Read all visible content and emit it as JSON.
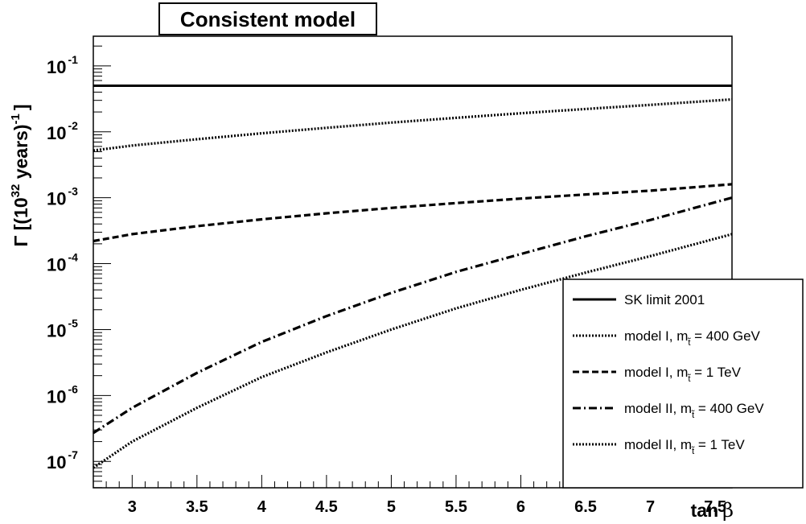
{
  "chart_data": {
    "type": "line",
    "title": "Consistent model",
    "xlabel": {
      "main": "tan",
      "symbol": "β"
    },
    "ylabel": {
      "pre": "Γ [(10",
      "sup1": "32",
      "mid": " years)",
      "sup2": "-1",
      "post": "]"
    },
    "xlim": [
      2.7,
      7.63
    ],
    "ylim_log10": [
      -7.4,
      -0.55
    ],
    "yscale": "log",
    "x_ticks": [
      "3",
      "3.5",
      "4",
      "4.5",
      "5",
      "5.5",
      "6",
      "6.5",
      "7",
      "7.5"
    ],
    "y_ticks": [
      {
        "base": "10",
        "exp": "-1"
      },
      {
        "base": "10",
        "exp": "-2"
      },
      {
        "base": "10",
        "exp": "-3"
      },
      {
        "base": "10",
        "exp": "-4"
      },
      {
        "base": "10",
        "exp": "-5"
      },
      {
        "base": "10",
        "exp": "-6"
      },
      {
        "base": "10",
        "exp": "-7"
      }
    ],
    "legend_position": "bottom-right",
    "series": [
      {
        "name": "SK limit 2001",
        "legend": {
          "pre": "SK limit 2001"
        },
        "style": "solid",
        "x": [
          2.7,
          7.63
        ],
        "y": [
          0.05,
          0.05
        ]
      },
      {
        "name": "model I, m = 400 GeV",
        "legend": {
          "pre": "model I, m",
          "sub": "t̃",
          "post": " = 400 GeV"
        },
        "style": "dotted",
        "x": [
          2.7,
          3.0,
          3.5,
          4.0,
          4.5,
          5.0,
          5.5,
          6.0,
          6.5,
          7.0,
          7.63
        ],
        "y": [
          0.0052,
          0.0062,
          0.0077,
          0.0095,
          0.0115,
          0.0138,
          0.0163,
          0.0191,
          0.0222,
          0.0256,
          0.031
        ]
      },
      {
        "name": "model I, m = 1 TeV",
        "legend": {
          "pre": "model I, m",
          "sub": "t̃",
          "post": " = 1 TeV"
        },
        "style": "dashed",
        "x": [
          2.7,
          3.0,
          3.5,
          4.0,
          4.5,
          5.0,
          5.5,
          6.0,
          6.5,
          7.0,
          7.63
        ],
        "y": [
          0.00022,
          0.00028,
          0.00037,
          0.00047,
          0.00058,
          0.0007,
          0.00083,
          0.00097,
          0.00112,
          0.00128,
          0.0016
        ]
      },
      {
        "name": "model II, m = 400 GeV",
        "legend": {
          "pre": "model II, m",
          "sub": "t̃",
          "post": " = 400 GeV"
        },
        "style": "dashdot",
        "x": [
          2.7,
          3.0,
          3.5,
          4.0,
          4.5,
          5.0,
          5.5,
          6.0,
          6.5,
          7.0,
          7.63
        ],
        "y": [
          2.7e-07,
          6.5e-07,
          2.2e-06,
          6.5e-06,
          1.6e-05,
          3.6e-05,
          7.5e-05,
          0.00014,
          0.00026,
          0.00046,
          0.001
        ]
      },
      {
        "name": "model II, m = 1 TeV",
        "legend": {
          "pre": "model II, m",
          "sub": "t̃",
          "post": " = 1 TeV"
        },
        "style": "dotted",
        "x": [
          2.7,
          3.0,
          3.5,
          4.0,
          4.5,
          5.0,
          5.5,
          6.0,
          6.5,
          7.0,
          7.63
        ],
        "y": [
          8e-08,
          2e-07,
          6.5e-07,
          1.9e-06,
          4.5e-06,
          1e-05,
          2.1e-05,
          4e-05,
          7.3e-05,
          0.00013,
          0.00028
        ]
      }
    ]
  }
}
